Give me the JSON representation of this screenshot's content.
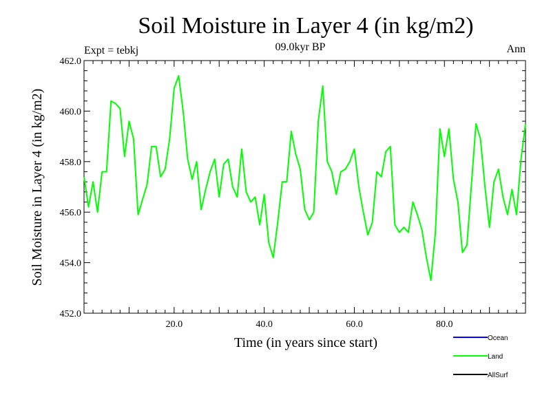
{
  "chart_data": {
    "type": "line",
    "title": "Soil Moisture in Layer 4 (in kg/m2)",
    "subtitle": "09.0kyr BP",
    "expt_label": "Expt = tebkj",
    "period_label": "Ann",
    "xlabel": "Time (in years since start)",
    "ylabel": "Soil Moisture in Layer 4 (in kg/m2)",
    "xlim": [
      0,
      98
    ],
    "ylim": [
      452,
      462
    ],
    "x_ticks": [
      20,
      40,
      60,
      80
    ],
    "x_tick_labels": [
      "20.0",
      "40.0",
      "60.0",
      "80.0"
    ],
    "y_ticks": [
      452,
      454,
      456,
      458,
      460,
      462
    ],
    "y_tick_labels": [
      "452.0",
      "454.0",
      "456.0",
      "458.0",
      "460.0",
      "462.0"
    ],
    "series": [
      {
        "name": "Ocean",
        "color": "#0000ff",
        "values": []
      },
      {
        "name": "Land",
        "color": "#00ff00",
        "x": [
          0,
          1,
          2,
          3,
          4,
          5,
          6,
          7,
          8,
          9,
          10,
          11,
          12,
          13,
          14,
          15,
          16,
          17,
          18,
          19,
          20,
          21,
          22,
          23,
          24,
          25,
          26,
          27,
          28,
          29,
          30,
          31,
          32,
          33,
          34,
          35,
          36,
          37,
          38,
          39,
          40,
          41,
          42,
          43,
          44,
          45,
          46,
          47,
          48,
          49,
          50,
          51,
          52,
          53,
          54,
          55,
          56,
          57,
          58,
          59,
          60,
          61,
          62,
          63,
          64,
          65,
          66,
          67,
          68,
          69,
          70,
          71,
          72,
          73,
          74,
          75,
          76,
          77,
          78,
          79,
          80,
          81,
          82,
          83,
          84,
          85,
          86,
          87,
          88,
          89,
          90,
          91,
          92,
          93,
          94,
          95,
          96,
          97,
          98
        ],
        "values": [
          457.4,
          456.2,
          457.2,
          456.0,
          457.6,
          457.6,
          460.4,
          460.3,
          460.1,
          458.2,
          459.6,
          458.9,
          455.9,
          456.5,
          457.1,
          458.6,
          458.6,
          457.4,
          457.7,
          458.9,
          460.9,
          461.4,
          460.0,
          458.1,
          457.3,
          458.0,
          456.1,
          456.9,
          457.6,
          458.1,
          456.6,
          457.9,
          458.1,
          457.0,
          456.6,
          458.5,
          456.8,
          456.4,
          456.6,
          455.5,
          456.7,
          454.8,
          454.2,
          455.6,
          457.2,
          457.2,
          459.2,
          458.3,
          457.7,
          456.1,
          455.7,
          456.0,
          459.6,
          461.0,
          458.0,
          457.6,
          456.7,
          457.6,
          457.7,
          458.0,
          458.5,
          457.0,
          456.0,
          455.1,
          455.6,
          457.6,
          457.4,
          458.4,
          458.6,
          455.5,
          455.2,
          455.4,
          455.2,
          456.4,
          455.9,
          455.3,
          454.2,
          453.3,
          455.2,
          459.3,
          458.2,
          459.3,
          457.3,
          456.4,
          454.4,
          454.7,
          457.1,
          459.5,
          458.9,
          457.0,
          455.4,
          457.2,
          457.7,
          456.6,
          455.9,
          456.9,
          455.9,
          458.1,
          459.5
        ]
      },
      {
        "name": "AllSurf",
        "color": "#000000",
        "values": []
      }
    ],
    "grid": false,
    "legend_position": "bottom-right"
  }
}
